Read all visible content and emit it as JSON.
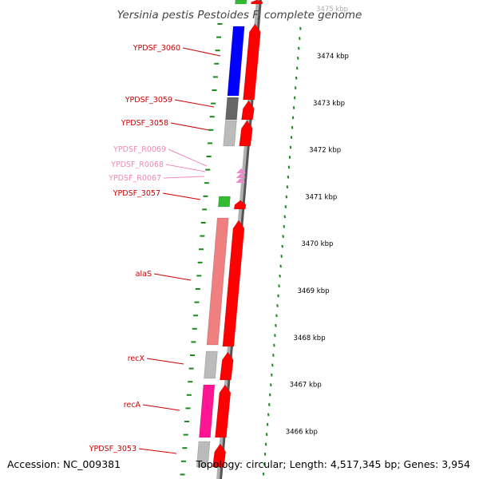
{
  "title": "Yersinia pestis Pestoides F, complete genome",
  "accession": "Accession: NC_009381",
  "topology": "Topology: circular; Length: 4,517,345 bp; Genes: 3,954",
  "colors": {
    "gene_label": "#cc0000",
    "rna_label": "#ee88bb",
    "backbone": "#b0b0b0",
    "backbone_shadow": "#555555",
    "tick_green": "#1a8a1a",
    "orf_red": "#ff0000",
    "blue": "#0000ff",
    "dark_gray": "#666666",
    "light_gray": "#bbbbbb",
    "green": "#33bb33",
    "salmon": "#f08080",
    "magenta": "#ff1493",
    "rna_pink": "#ee88cc"
  },
  "kbp_scale": {
    "top_partial": "3475 kbp",
    "ticks": [
      {
        "kbp": 3474,
        "label": "3474 kbp"
      },
      {
        "kbp": 3473,
        "label": "3473 kbp"
      },
      {
        "kbp": 3472,
        "label": "3472 kbp"
      },
      {
        "kbp": 3471,
        "label": "3471 kbp"
      },
      {
        "kbp": 3470,
        "label": "3470 kbp"
      },
      {
        "kbp": 3469,
        "label": "3469 kbp"
      },
      {
        "kbp": 3468,
        "label": "3468 kbp"
      },
      {
        "kbp": 3467,
        "label": "3467 kbp"
      },
      {
        "kbp": 3466,
        "label": "3466 kbp"
      }
    ]
  },
  "genes": [
    {
      "name": "YPDSF_3060",
      "type": "gene"
    },
    {
      "name": "YPDSF_3059",
      "type": "gene"
    },
    {
      "name": "YPDSF_3058",
      "type": "gene"
    },
    {
      "name": "YPDSF_R0069",
      "type": "rna"
    },
    {
      "name": "YPDSF_R0068",
      "type": "rna"
    },
    {
      "name": "YPDSF_R0067",
      "type": "rna"
    },
    {
      "name": "YPDSF_3057",
      "type": "gene"
    },
    {
      "name": "alaS",
      "type": "gene"
    },
    {
      "name": "recX",
      "type": "gene"
    },
    {
      "name": "recA",
      "type": "gene"
    },
    {
      "name": "YPDSF_3053",
      "type": "gene"
    }
  ]
}
